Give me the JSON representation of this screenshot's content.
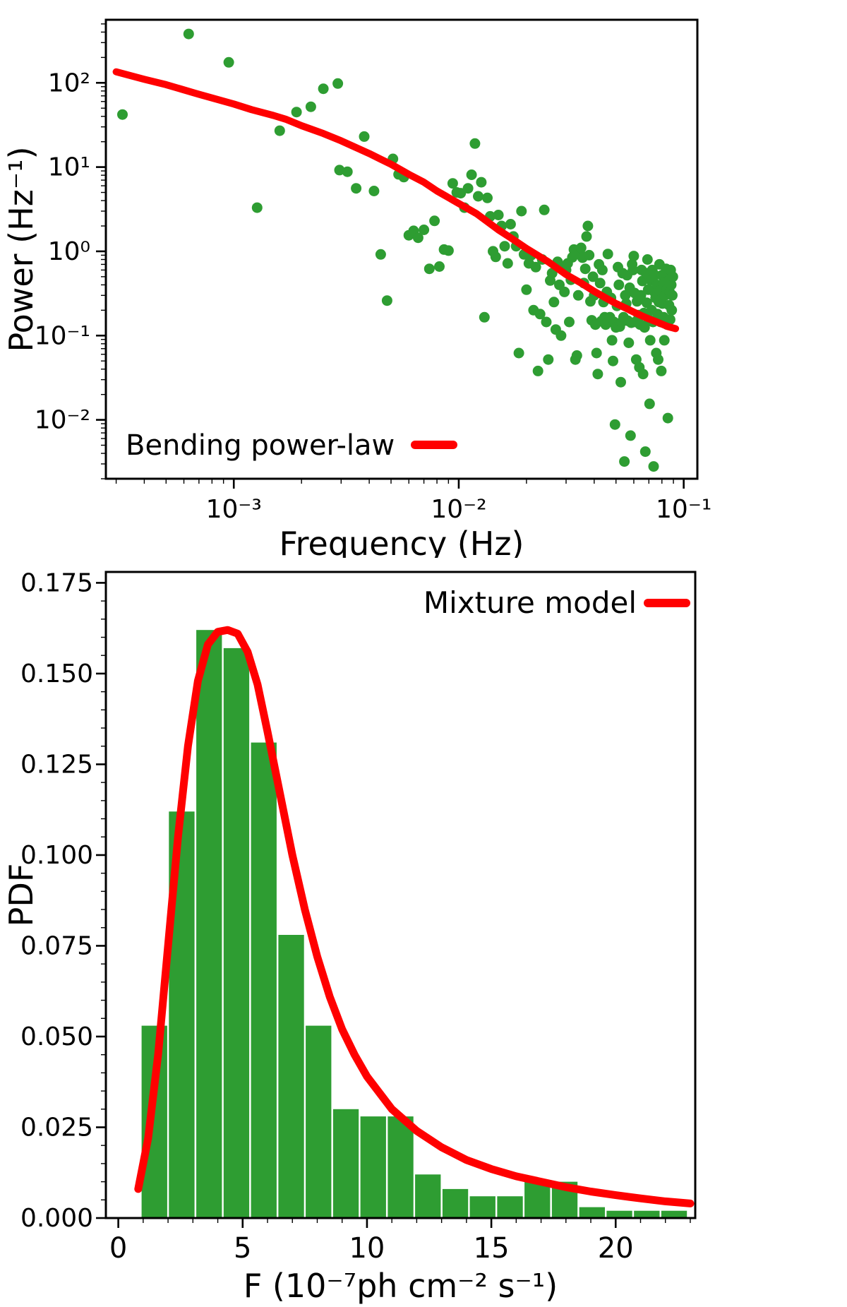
{
  "figure": {
    "background": "#ffffff"
  },
  "colors": {
    "data_green": "#2e9d32",
    "model_red": "#ff0000",
    "axis_black": "#000000"
  },
  "chart_data": [
    {
      "type": "scatter",
      "name": "power-spectrum",
      "title": "",
      "xlabel": "Frequency (Hz)",
      "ylabel": "Power (Hz⁻¹)",
      "xscale": "log",
      "yscale": "log",
      "xlim": [
        0.00027,
        0.115
      ],
      "ylim": [
        0.002,
        560
      ],
      "grid": false,
      "legend": {
        "label": "Bending power-law",
        "position": "lower-left"
      },
      "xticks": [
        {
          "v": 0.001,
          "label": "10⁻³"
        },
        {
          "v": 0.01,
          "label": "10⁻²"
        },
        {
          "v": 0.1,
          "label": "10⁻¹"
        }
      ],
      "yticks": [
        {
          "v": 0.01,
          "label": "10⁻²"
        },
        {
          "v": 0.1,
          "label": "10⁻¹"
        },
        {
          "v": 1,
          "label": "10⁰"
        },
        {
          "v": 10,
          "label": "10¹"
        },
        {
          "v": 100,
          "label": "10²"
        }
      ],
      "points": [
        [
          0.00032,
          42
        ],
        [
          0.00063,
          380
        ],
        [
          0.00095,
          175
        ],
        [
          0.00127,
          3.3
        ],
        [
          0.0016,
          27
        ],
        [
          0.0019,
          45
        ],
        [
          0.0022,
          52
        ],
        [
          0.0025,
          85
        ],
        [
          0.0029,
          98
        ],
        [
          0.00295,
          9.2
        ],
        [
          0.0032,
          8.8
        ],
        [
          0.0035,
          5.6
        ],
        [
          0.0038,
          23
        ],
        [
          0.0042,
          5.2
        ],
        [
          0.0045,
          0.92
        ],
        [
          0.0048,
          0.26
        ],
        [
          0.0051,
          12.5
        ],
        [
          0.0054,
          8.2
        ],
        [
          0.0057,
          7.6
        ],
        [
          0.006,
          1.55
        ],
        [
          0.0063,
          1.75
        ],
        [
          0.0066,
          1.45
        ],
        [
          0.007,
          1.8
        ],
        [
          0.0074,
          0.62
        ],
        [
          0.0078,
          2.3
        ],
        [
          0.0082,
          0.66
        ],
        [
          0.0086,
          1.05
        ],
        [
          0.009,
          1.02
        ],
        [
          0.0094,
          6.4
        ],
        [
          0.0098,
          5.0
        ],
        [
          0.0102,
          4.9
        ],
        [
          0.0106,
          3.3
        ],
        [
          0.011,
          5.6
        ],
        [
          0.0114,
          8.1
        ],
        [
          0.0118,
          19
        ],
        [
          0.0122,
          4.5
        ],
        [
          0.0126,
          6.6
        ],
        [
          0.013,
          0.165
        ],
        [
          0.0134,
          4.3
        ],
        [
          0.0138,
          2.6
        ],
        [
          0.0142,
          1.0
        ],
        [
          0.0146,
          0.86
        ],
        [
          0.015,
          2.7
        ],
        [
          0.0155,
          2.0
        ],
        [
          0.016,
          1.15
        ],
        [
          0.0165,
          0.72
        ],
        [
          0.017,
          2.1
        ],
        [
          0.0175,
          1.5
        ],
        [
          0.018,
          1.15
        ],
        [
          0.0185,
          0.062
        ],
        [
          0.019,
          3.0
        ],
        [
          0.0195,
          0.92
        ],
        [
          0.02,
          0.35
        ],
        [
          0.0205,
          0.72
        ],
        [
          0.021,
          0.9
        ],
        [
          0.0215,
          0.2
        ],
        [
          0.022,
          0.65
        ],
        [
          0.0225,
          0.038
        ],
        [
          0.023,
          0.18
        ],
        [
          0.0235,
          0.8
        ],
        [
          0.024,
          3.1
        ],
        [
          0.0245,
          0.145
        ],
        [
          0.025,
          0.052
        ],
        [
          0.0255,
          0.45
        ],
        [
          0.026,
          0.55
        ],
        [
          0.0265,
          0.25
        ],
        [
          0.027,
          0.118
        ],
        [
          0.0275,
          0.75
        ],
        [
          0.028,
          0.4
        ],
        [
          0.0285,
          0.1
        ],
        [
          0.029,
          0.65
        ],
        [
          0.0295,
          0.33
        ],
        [
          0.03,
          0.6
        ],
        [
          0.0305,
          0.72
        ],
        [
          0.031,
          0.145
        ],
        [
          0.0315,
          0.46
        ],
        [
          0.032,
          0.85
        ],
        [
          0.0325,
          1.05
        ],
        [
          0.033,
          0.052
        ],
        [
          0.0335,
          0.058
        ],
        [
          0.034,
          0.3
        ],
        [
          0.0345,
          0.98
        ],
        [
          0.035,
          1.1
        ],
        [
          0.0355,
          0.84
        ],
        [
          0.036,
          0.42
        ],
        [
          0.0365,
          0.62
        ],
        [
          0.037,
          1.5
        ],
        [
          0.0375,
          2.0
        ],
        [
          0.038,
          0.9
        ],
        [
          0.0385,
          0.255
        ],
        [
          0.039,
          0.152
        ],
        [
          0.0395,
          0.5
        ],
        [
          0.04,
          0.3
        ],
        [
          0.0405,
          0.135
        ],
        [
          0.041,
          0.062
        ],
        [
          0.0415,
          0.035
        ],
        [
          0.042,
          0.7
        ],
        [
          0.0425,
          0.42
        ],
        [
          0.043,
          0.148
        ],
        [
          0.0435,
          0.6
        ],
        [
          0.044,
          0.25
        ],
        [
          0.0445,
          0.165
        ],
        [
          0.045,
          0.135
        ],
        [
          0.0455,
          0.33
        ],
        [
          0.046,
          0.93
        ],
        [
          0.0465,
          0.145
        ],
        [
          0.047,
          0.165
        ],
        [
          0.0475,
          0.28
        ],
        [
          0.048,
          0.088
        ],
        [
          0.0485,
          0.05
        ],
        [
          0.049,
          0.145
        ],
        [
          0.0495,
          0.0088
        ],
        [
          0.05,
          0.125
        ],
        [
          0.0505,
          0.225
        ],
        [
          0.051,
          0.65
        ],
        [
          0.0515,
          0.4
        ],
        [
          0.052,
          0.128
        ],
        [
          0.0525,
          0.028
        ],
        [
          0.053,
          0.145
        ],
        [
          0.0535,
          0.55
        ],
        [
          0.054,
          0.165
        ],
        [
          0.0545,
          0.0032
        ],
        [
          0.055,
          0.3
        ],
        [
          0.0555,
          0.24
        ],
        [
          0.056,
          0.52
        ],
        [
          0.0565,
          0.15
        ],
        [
          0.057,
          0.082
        ],
        [
          0.0575,
          0.37
        ],
        [
          0.058,
          0.0065
        ],
        [
          0.0585,
          0.142
        ],
        [
          0.059,
          0.7
        ],
        [
          0.0595,
          0.6
        ],
        [
          0.06,
          0.88
        ],
        [
          0.0605,
          0.32
        ],
        [
          0.061,
          0.145
        ],
        [
          0.0615,
          0.052
        ],
        [
          0.062,
          0.255
        ],
        [
          0.0625,
          0.148
        ],
        [
          0.063,
          0.175
        ],
        [
          0.0635,
          0.042
        ],
        [
          0.064,
          0.135
        ],
        [
          0.0645,
          0.3
        ],
        [
          0.065,
          0.6
        ],
        [
          0.0655,
          0.445
        ],
        [
          0.066,
          0.035
        ],
        [
          0.0665,
          0.185
        ],
        [
          0.067,
          0.125
        ],
        [
          0.0675,
          0.0042
        ],
        [
          0.068,
          0.55
        ],
        [
          0.0685,
          0.245
        ],
        [
          0.069,
          0.8
        ],
        [
          0.0695,
          0.35
        ],
        [
          0.07,
          0.155
        ],
        [
          0.0705,
          0.0155
        ],
        [
          0.071,
          0.088
        ],
        [
          0.0715,
          0.45
        ],
        [
          0.072,
          0.2
        ],
        [
          0.0725,
          0.6
        ],
        [
          0.073,
          0.145
        ],
        [
          0.0735,
          0.0028
        ],
        [
          0.074,
          0.33
        ],
        [
          0.0745,
          0.52
        ],
        [
          0.075,
          0.28
        ],
        [
          0.0755,
          0.062
        ],
        [
          0.076,
          0.4
        ],
        [
          0.0765,
          0.18
        ],
        [
          0.077,
          0.052
        ],
        [
          0.0775,
          0.25
        ],
        [
          0.078,
          0.7
        ],
        [
          0.0785,
          0.34
        ],
        [
          0.079,
          0.145
        ],
        [
          0.0795,
          0.038
        ],
        [
          0.08,
          0.52
        ],
        [
          0.0805,
          0.24
        ],
        [
          0.081,
          0.42
        ],
        [
          0.0815,
          0.165
        ],
        [
          0.082,
          0.088
        ],
        [
          0.0825,
          0.3
        ],
        [
          0.083,
          0.55
        ],
        [
          0.0835,
          0.62
        ],
        [
          0.084,
          0.35
        ],
        [
          0.0845,
          0.135
        ],
        [
          0.085,
          0.0105
        ],
        [
          0.0855,
          0.45
        ],
        [
          0.086,
          0.23
        ],
        [
          0.0865,
          0.33
        ],
        [
          0.087,
          0.155
        ],
        [
          0.0875,
          0.6
        ],
        [
          0.088,
          0.4
        ],
        [
          0.0885,
          0.2
        ],
        [
          0.089,
          0.3
        ],
        [
          0.0895,
          0.5
        ]
      ],
      "model_curve": [
        [
          0.0003,
          135
        ],
        [
          0.0004,
          110
        ],
        [
          0.0005,
          95
        ],
        [
          0.0007,
          73
        ],
        [
          0.001,
          56
        ],
        [
          0.0012,
          48
        ],
        [
          0.0015,
          41
        ],
        [
          0.0017,
          37
        ],
        [
          0.002,
          31
        ],
        [
          0.0025,
          25
        ],
        [
          0.003,
          20.5
        ],
        [
          0.0035,
          17
        ],
        [
          0.004,
          14.5
        ],
        [
          0.0045,
          12.4
        ],
        [
          0.005,
          10.8
        ],
        [
          0.006,
          8.2
        ],
        [
          0.007,
          6.6
        ],
        [
          0.008,
          5.2
        ],
        [
          0.01,
          3.7
        ],
        [
          0.012,
          2.8
        ],
        [
          0.015,
          1.8
        ],
        [
          0.017,
          1.45
        ],
        [
          0.02,
          1.08
        ],
        [
          0.025,
          0.75
        ],
        [
          0.03,
          0.53
        ],
        [
          0.035,
          0.42
        ],
        [
          0.04,
          0.335
        ],
        [
          0.045,
          0.28
        ],
        [
          0.05,
          0.24
        ],
        [
          0.055,
          0.213
        ],
        [
          0.06,
          0.19
        ],
        [
          0.065,
          0.172
        ],
        [
          0.07,
          0.158
        ],
        [
          0.075,
          0.147
        ],
        [
          0.08,
          0.137
        ],
        [
          0.085,
          0.128
        ],
        [
          0.092,
          0.121
        ]
      ]
    },
    {
      "type": "bar",
      "name": "flux-pdf-histogram",
      "title": "",
      "xlabel": "F (10⁻⁷ph cm⁻² s⁻¹)",
      "ylabel": "PDF",
      "xscale": "linear",
      "yscale": "linear",
      "xlim": [
        -0.5,
        23.2
      ],
      "ylim": [
        0,
        0.178
      ],
      "grid": false,
      "legend": {
        "label": "Mixture model",
        "position": "upper-right"
      },
      "xticks": [
        {
          "v": 0,
          "label": "0"
        },
        {
          "v": 5,
          "label": "5"
        },
        {
          "v": 10,
          "label": "10"
        },
        {
          "v": 15,
          "label": "15"
        },
        {
          "v": 20,
          "label": "20"
        }
      ],
      "yticks": [
        {
          "v": 0,
          "label": "0.000"
        },
        {
          "v": 0.025,
          "label": "0.025"
        },
        {
          "v": 0.05,
          "label": "0.050"
        },
        {
          "v": 0.075,
          "label": "0.075"
        },
        {
          "v": 0.1,
          "label": "0.100"
        },
        {
          "v": 0.125,
          "label": "0.125"
        },
        {
          "v": 0.15,
          "label": "0.150"
        },
        {
          "v": 0.175,
          "label": "0.175"
        }
      ],
      "bin_start": 0.9,
      "bin_width": 1.1,
      "bin_heights": [
        0.053,
        0.112,
        0.162,
        0.157,
        0.131,
        0.078,
        0.053,
        0.03,
        0.028,
        0.028,
        0.012,
        0.008,
        0.006,
        0.006,
        0.01,
        0.01,
        0.003,
        0.002,
        0.002,
        0.002
      ],
      "model_curve": [
        [
          0.8,
          0.008
        ],
        [
          1.2,
          0.022
        ],
        [
          1.6,
          0.045
        ],
        [
          2.0,
          0.075
        ],
        [
          2.4,
          0.105
        ],
        [
          2.8,
          0.13
        ],
        [
          3.2,
          0.148
        ],
        [
          3.6,
          0.158
        ],
        [
          4.0,
          0.1615
        ],
        [
          4.4,
          0.162
        ],
        [
          4.8,
          0.161
        ],
        [
          5.2,
          0.156
        ],
        [
          5.6,
          0.147
        ],
        [
          6.0,
          0.134
        ],
        [
          6.5,
          0.117
        ],
        [
          7.0,
          0.1
        ],
        [
          7.5,
          0.085
        ],
        [
          8.0,
          0.072
        ],
        [
          8.5,
          0.061
        ],
        [
          9.0,
          0.052
        ],
        [
          9.5,
          0.045
        ],
        [
          10,
          0.039
        ],
        [
          11,
          0.03
        ],
        [
          12,
          0.024
        ],
        [
          13,
          0.0195
        ],
        [
          14,
          0.016
        ],
        [
          15,
          0.0135
        ],
        [
          16,
          0.0115
        ],
        [
          17,
          0.01
        ],
        [
          18,
          0.0085
        ],
        [
          19,
          0.0073
        ],
        [
          20,
          0.0063
        ],
        [
          21,
          0.0054
        ],
        [
          22,
          0.0046
        ],
        [
          23,
          0.004
        ]
      ]
    }
  ]
}
